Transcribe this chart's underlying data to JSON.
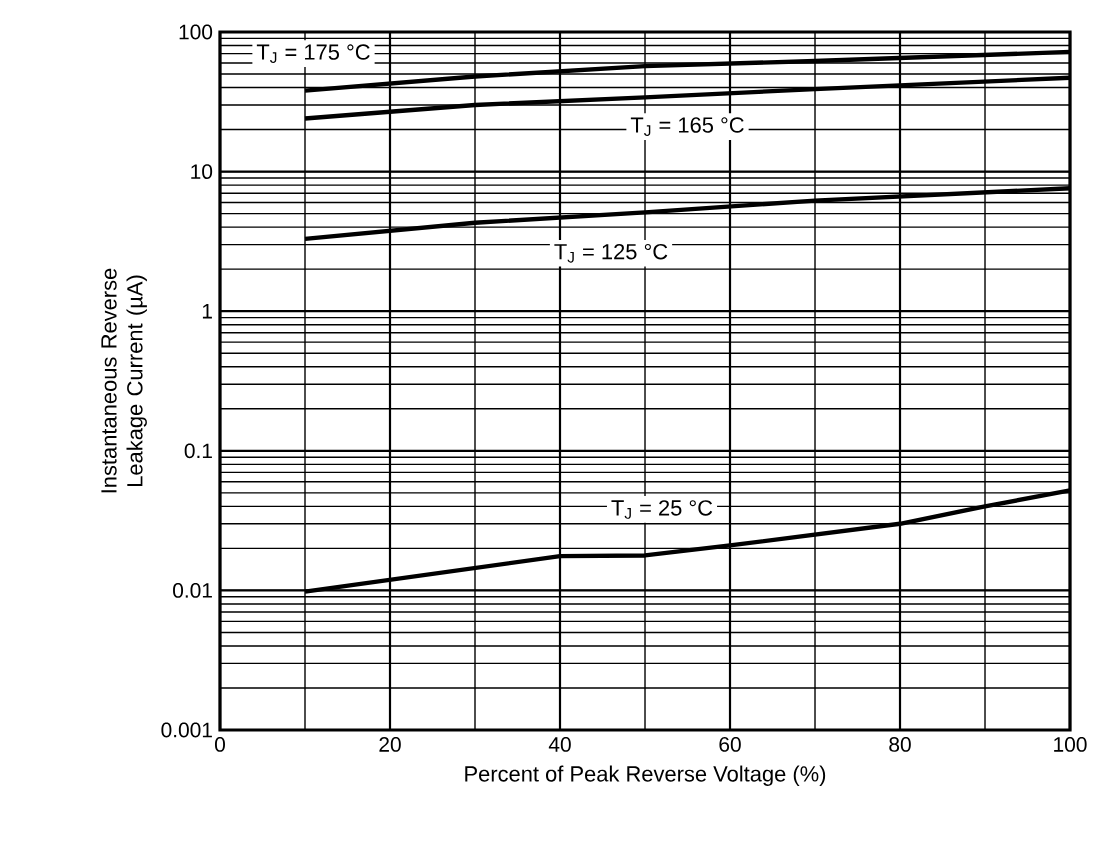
{
  "chart_data": {
    "type": "line",
    "xlabel": "Percent of Peak Reverse Voltage (%)",
    "ylabel": "Instantaneous Reverse Leakage Current (µA)",
    "log": "y",
    "grid": true,
    "line_style": "solid",
    "marker": "none",
    "xlim": [
      0,
      100
    ],
    "xticks": [
      0,
      20,
      40,
      60,
      80,
      100
    ],
    "ylim": [
      0.001,
      100
    ],
    "yticks": [
      0.001,
      0.01,
      0.1,
      1,
      10,
      100
    ],
    "series": [
      {
        "name": "T$_{J}$ = 175 °C",
        "color": "#000000",
        "x": [
          10,
          30,
          50,
          70,
          100
        ],
        "values": [
          38,
          48,
          57,
          62,
          72
        ]
      },
      {
        "name": "T$_{J}$ = 165 °C",
        "color": "#000000",
        "x": [
          10,
          30,
          50,
          70,
          100
        ],
        "values": [
          24,
          30,
          34,
          39,
          47
        ]
      },
      {
        "name": "T$_{J}$ = 125 °C",
        "color": "#000000",
        "x": [
          10,
          30,
          50,
          70,
          100
        ],
        "values": [
          3.3,
          4.3,
          5.1,
          6.2,
          7.6
        ]
      },
      {
        "name": "T$_{J}$ = 25 °C",
        "color": "#000000",
        "x": [
          10,
          40,
          50,
          60,
          80,
          90,
          100
        ],
        "values": [
          0.0098,
          0.0176,
          0.0178,
          0.021,
          0.03,
          0.04,
          0.052
        ]
      }
    ]
  }
}
